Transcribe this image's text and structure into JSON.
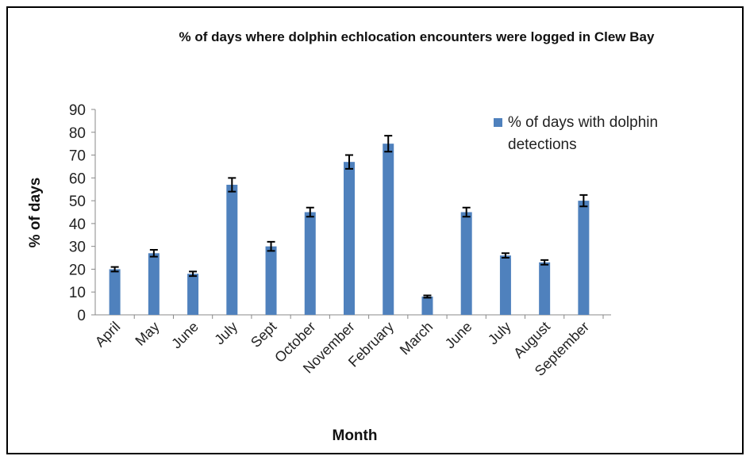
{
  "chart_data": {
    "type": "bar",
    "title": "% of days where dolphin echlocation encounters were logged in Clew Bay",
    "x_label": "Month",
    "y_label": "% of days",
    "categories": [
      "April",
      "May",
      "June",
      "July",
      "Sept",
      "October",
      "November",
      "February",
      "March",
      "June",
      "July",
      "August",
      "September"
    ],
    "series": [
      {
        "name": "% of days with dolphin detections",
        "color": "#4f81bd",
        "values": [
          20,
          27,
          18,
          57,
          30,
          45,
          67,
          75,
          8,
          45,
          26,
          23,
          50
        ],
        "errors": [
          1,
          1.5,
          1,
          3,
          2,
          2,
          3,
          3.5,
          0.5,
          2,
          1,
          1,
          2.5
        ]
      }
    ],
    "ylim": [
      0,
      90
    ],
    "yticks": [
      0,
      10,
      20,
      30,
      40,
      50,
      60,
      70,
      80,
      90
    ],
    "legend": "top-right",
    "grid": false
  }
}
